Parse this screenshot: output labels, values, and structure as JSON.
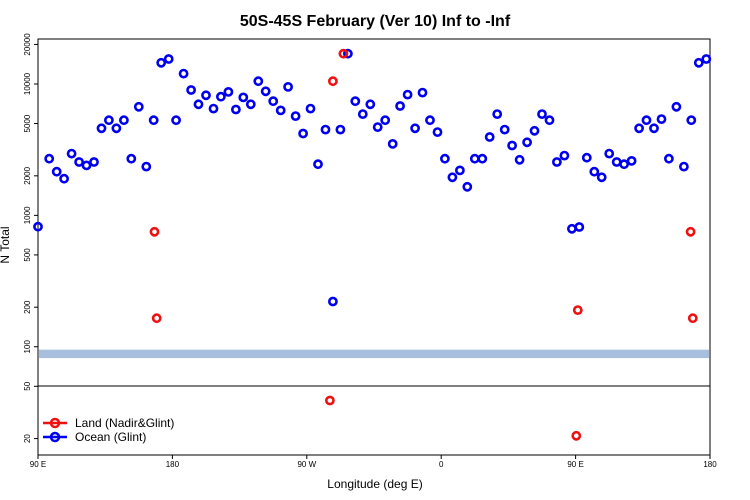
{
  "chart_data": {
    "type": "scatter",
    "title": "50S-45S February (Ver 10)   Inf to -Inf",
    "xlabel": "Longitude (deg E)",
    "ylabel": "N Total",
    "x_scale": "longitude, 90 E to 180 E wrapping through 180, 90 W, 0",
    "y_scale": "log",
    "ylim": [
      15,
      22000
    ],
    "x_ticks": [
      {
        "lon": 90,
        "label": "90 E"
      },
      {
        "lon": 180,
        "label": "180"
      },
      {
        "lon": 270,
        "label": "90 W"
      },
      {
        "lon": 360,
        "label": "0"
      },
      {
        "lon": 450,
        "label": "90 E"
      },
      {
        "lon": 540,
        "label": "180"
      }
    ],
    "y_ticks": [
      {
        "value": 20,
        "label": "20"
      },
      {
        "value": 50,
        "label": "50"
      },
      {
        "value": 100,
        "label": "100"
      },
      {
        "value": 200,
        "label": "200"
      },
      {
        "value": 500,
        "label": "500"
      },
      {
        "value": 1000,
        "label": "1000"
      },
      {
        "value": 2000,
        "label": "2000"
      },
      {
        "value": 5000,
        "label": "5000"
      },
      {
        "value": 10000,
        "label": "10000"
      },
      {
        "value": 20000,
        "label": "20000"
      }
    ],
    "legend": {
      "placement": "bottom-left",
      "entries": [
        {
          "label": "Land (Nadir&Glint)",
          "color": "#ee1111"
        },
        {
          "label": "Ocean (Glint)",
          "color": "#0000ee"
        }
      ]
    },
    "band": {
      "y_range": [
        82,
        95
      ],
      "color": "#a7bfdc"
    },
    "series": [
      {
        "name": "Ocean (Glint)",
        "color": "#0000ee",
        "points": [
          [
            90,
            820
          ],
          [
            97.5,
            2700
          ],
          [
            102.5,
            2150
          ],
          [
            107.5,
            1900
          ],
          [
            112.5,
            2950
          ],
          [
            117.5,
            2550
          ],
          [
            122.5,
            2400
          ],
          [
            127.5,
            2550
          ],
          [
            132.5,
            4600
          ],
          [
            137.5,
            5300
          ],
          [
            142.5,
            4600
          ],
          [
            147.5,
            5300
          ],
          [
            152.5,
            2700
          ],
          [
            157.5,
            6700
          ],
          [
            162.5,
            2350
          ],
          [
            167.5,
            5300
          ],
          [
            172.5,
            14500
          ],
          [
            177.5,
            15500
          ],
          [
            182.5,
            5300
          ],
          [
            187.5,
            12000
          ],
          [
            192.5,
            9000
          ],
          [
            197.5,
            7000
          ],
          [
            202.5,
            8200
          ],
          [
            207.5,
            6500
          ],
          [
            212.5,
            8000
          ],
          [
            217.5,
            8700
          ],
          [
            222.5,
            6400
          ],
          [
            227.5,
            7900
          ],
          [
            232.5,
            7000
          ],
          [
            237.5,
            10500
          ],
          [
            242.5,
            8800
          ],
          [
            247.5,
            7400
          ],
          [
            252.5,
            6300
          ],
          [
            257.5,
            9500
          ],
          [
            262.5,
            5700
          ],
          [
            267.5,
            4200
          ],
          [
            272.5,
            6500
          ],
          [
            277.5,
            2450
          ],
          [
            282.5,
            4500
          ],
          [
            287.5,
            221
          ],
          [
            292.5,
            4500
          ],
          [
            297.5,
            17000
          ],
          [
            302.5,
            7400
          ],
          [
            307.5,
            5900
          ],
          [
            312.5,
            7000
          ],
          [
            317.5,
            4700
          ],
          [
            322.5,
            5300
          ],
          [
            327.5,
            3500
          ],
          [
            332.5,
            6800
          ],
          [
            337.5,
            8300
          ],
          [
            342.5,
            4600
          ],
          [
            347.5,
            8600
          ],
          [
            352.5,
            5300
          ],
          [
            357.5,
            4300
          ],
          [
            362.5,
            2700
          ],
          [
            367.5,
            1950
          ],
          [
            372.5,
            2200
          ],
          [
            377.5,
            1650
          ],
          [
            382.5,
            2700
          ],
          [
            387.5,
            2700
          ],
          [
            392.5,
            3950
          ],
          [
            397.5,
            5900
          ],
          [
            402.5,
            4500
          ],
          [
            407.5,
            3400
          ],
          [
            412.5,
            2650
          ],
          [
            417.5,
            3600
          ],
          [
            422.5,
            4400
          ],
          [
            427.5,
            5900
          ],
          [
            432.5,
            5300
          ],
          [
            437.5,
            2550
          ],
          [
            442.5,
            2850
          ],
          [
            447.5,
            790
          ],
          [
            452.5,
            815
          ],
          [
            457.5,
            2750
          ],
          [
            462.5,
            2150
          ],
          [
            467.5,
            1950
          ],
          [
            472.5,
            2950
          ],
          [
            477.5,
            2550
          ],
          [
            482.5,
            2450
          ],
          [
            487.5,
            2600
          ],
          [
            492.5,
            4600
          ],
          [
            497.5,
            5300
          ],
          [
            502.5,
            4600
          ],
          [
            507.5,
            5400
          ],
          [
            512.5,
            2700
          ],
          [
            517.5,
            6700
          ],
          [
            522.5,
            2350
          ],
          [
            527.5,
            5300
          ],
          [
            532.5,
            14500
          ],
          [
            537.5,
            15500
          ]
        ]
      },
      {
        "name": "Land (Nadir&Glint)",
        "color": "#ee1111",
        "points": [
          [
            168.0,
            750
          ],
          [
            169.5,
            165
          ],
          [
            285.5,
            39
          ],
          [
            287.5,
            10500
          ],
          [
            294.5,
            17000
          ],
          [
            450.5,
            21
          ],
          [
            451.5,
            190
          ],
          [
            527.0,
            750
          ],
          [
            528.5,
            165
          ]
        ]
      }
    ]
  }
}
